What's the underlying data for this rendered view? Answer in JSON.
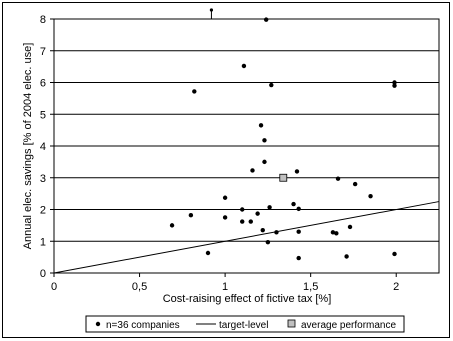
{
  "chart_data": {
    "type": "scatter",
    "xlabel": "Cost-raising effect of fictive tax [%]",
    "ylabel": "Annual elec. savings [% of 2004 elec. use]",
    "xlim": [
      0,
      2.25
    ],
    "ylim": [
      0,
      8
    ],
    "x_ticks": [
      {
        "value": 0,
        "label": "0"
      },
      {
        "value": 0.5,
        "label": "0,5"
      },
      {
        "value": 1,
        "label": "1"
      },
      {
        "value": 1.5,
        "label": "1,5"
      },
      {
        "value": 2,
        "label": "2"
      }
    ],
    "y_ticks": [
      {
        "value": 0,
        "label": "0"
      },
      {
        "value": 1,
        "label": "1"
      },
      {
        "value": 2,
        "label": "2"
      },
      {
        "value": 3,
        "label": "3"
      },
      {
        "value": 4,
        "label": "4"
      },
      {
        "value": 5,
        "label": "5"
      },
      {
        "value": 6,
        "label": "6"
      },
      {
        "value": 7,
        "label": "7"
      },
      {
        "value": 8,
        "label": "8"
      }
    ],
    "grid": "horizontal",
    "legend_position": "bottom",
    "series": [
      {
        "name": "n=36 companies",
        "marker": "dot",
        "color": "#000000",
        "points": [
          {
            "x": 0.69,
            "y": 1.5
          },
          {
            "x": 0.8,
            "y": 1.82
          },
          {
            "x": 0.82,
            "y": 5.72
          },
          {
            "x": 0.9,
            "y": 0.63
          },
          {
            "x": 1.0,
            "y": 2.37
          },
          {
            "x": 1.0,
            "y": 1.75
          },
          {
            "x": 1.1,
            "y": 2.0
          },
          {
            "x": 1.1,
            "y": 1.62
          },
          {
            "x": 1.11,
            "y": 6.52
          },
          {
            "x": 1.15,
            "y": 1.62
          },
          {
            "x": 1.16,
            "y": 3.23
          },
          {
            "x": 1.19,
            "y": 1.87
          },
          {
            "x": 1.21,
            "y": 4.65
          },
          {
            "x": 1.22,
            "y": 1.35
          },
          {
            "x": 1.23,
            "y": 4.18
          },
          {
            "x": 1.23,
            "y": 3.5
          },
          {
            "x": 1.24,
            "y": 7.98
          },
          {
            "x": 1.25,
            "y": 0.97
          },
          {
            "x": 1.26,
            "y": 2.07
          },
          {
            "x": 1.27,
            "y": 5.92
          },
          {
            "x": 1.3,
            "y": 1.28
          },
          {
            "x": 1.4,
            "y": 2.17
          },
          {
            "x": 1.42,
            "y": 3.2
          },
          {
            "x": 1.43,
            "y": 2.02
          },
          {
            "x": 1.43,
            "y": 1.3
          },
          {
            "x": 1.43,
            "y": 0.47
          },
          {
            "x": 1.63,
            "y": 1.28
          },
          {
            "x": 1.65,
            "y": 1.25
          },
          {
            "x": 1.66,
            "y": 2.97
          },
          {
            "x": 1.71,
            "y": 0.52
          },
          {
            "x": 1.73,
            "y": 1.45
          },
          {
            "x": 1.76,
            "y": 2.8
          },
          {
            "x": 1.85,
            "y": 2.42
          },
          {
            "x": 1.99,
            "y": 6.0
          },
          {
            "x": 1.99,
            "y": 5.9
          },
          {
            "x": 1.99,
            "y": 0.6
          }
        ]
      },
      {
        "name": "target-level",
        "marker": "line",
        "color": "#000000",
        "points": [
          {
            "x": 0,
            "y": 0
          },
          {
            "x": 2.25,
            "y": 2.25
          }
        ]
      },
      {
        "name": "average performance",
        "marker": "square",
        "color": "#c0c0c0",
        "points": [
          {
            "x": 1.34,
            "y": 3.0
          }
        ]
      }
    ],
    "outlier_above": {
      "x": 0.92,
      "y": 8.4
    }
  }
}
